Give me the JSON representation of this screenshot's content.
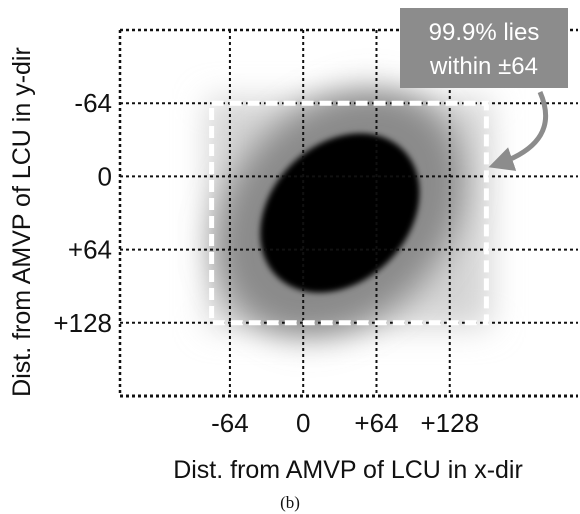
{
  "chart_data": {
    "type": "heatmap",
    "title": "",
    "xlabel": "Dist. from AMVP of LCU in x-dir",
    "ylabel": "Dist. from AMVP of LCU in y-dir",
    "x_ticks": [
      "-64",
      "0",
      "+64",
      "+128"
    ],
    "x_tick_values": [
      -64,
      0,
      64,
      128
    ],
    "y_ticks": [
      "-64",
      "0",
      "+64",
      "+128"
    ],
    "y_tick_values": [
      -64,
      0,
      64,
      128
    ],
    "xlim": [
      -160,
      240
    ],
    "ylim": [
      -128,
      192
    ],
    "y_axis_inverted": true,
    "grid": true,
    "highlight_region": {
      "x_range": [
        -80,
        160
      ],
      "y_range": [
        -64,
        128
      ],
      "style": "dashed-white"
    },
    "density_core": {
      "center_x": 32,
      "center_y": 32,
      "rx": 78,
      "ry": 60,
      "orientation_deg": 45
    },
    "annotation": {
      "lines": [
        "99.9% lies",
        "within ±64"
      ]
    },
    "caption": "(b)",
    "colors": {
      "density": "#000000",
      "background": "#ffffff",
      "callout_box": "#8c8c8c",
      "arrow": "#8c8c8c"
    }
  }
}
